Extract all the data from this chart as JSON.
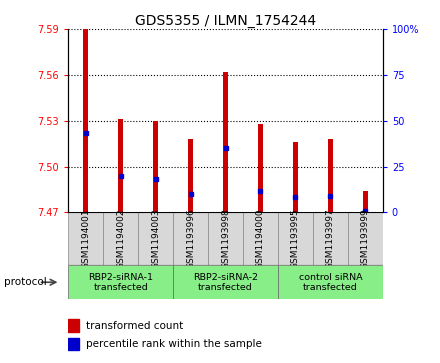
{
  "title": "GDS5355 / ILMN_1754244",
  "samples": [
    "GSM1194001",
    "GSM1194002",
    "GSM1194003",
    "GSM1193996",
    "GSM1193998",
    "GSM1194000",
    "GSM1193995",
    "GSM1193997",
    "GSM1193999"
  ],
  "bar_tops": [
    7.59,
    7.531,
    7.53,
    7.518,
    7.562,
    7.528,
    7.516,
    7.518,
    7.484
  ],
  "bar_bottoms": [
    7.47,
    7.47,
    7.47,
    7.47,
    7.47,
    7.47,
    7.47,
    7.47,
    7.47
  ],
  "percentile_values": [
    7.522,
    7.494,
    7.492,
    7.482,
    7.512,
    7.484,
    7.48,
    7.481,
    7.471
  ],
  "ylim": [
    7.47,
    7.59
  ],
  "yticks": [
    7.47,
    7.5,
    7.53,
    7.56,
    7.59
  ],
  "right_yticks": [
    0,
    25,
    50,
    75,
    100
  ],
  "right_ylim": [
    0,
    100
  ],
  "bar_color": "#cc0000",
  "percentile_color": "#0000cc",
  "group_labels": [
    "RBP2-siRNA-1\ntransfected",
    "RBP2-siRNA-2\ntransfected",
    "control siRNA\ntransfected"
  ],
  "group_ranges": [
    [
      0,
      3
    ],
    [
      3,
      6
    ],
    [
      6,
      9
    ]
  ],
  "group_color": "#88ee88",
  "legend_labels": [
    "transformed count",
    "percentile rank within the sample"
  ],
  "legend_colors": [
    "#cc0000",
    "#0000cc"
  ],
  "protocol_label": "protocol",
  "title_fontsize": 10,
  "tick_fontsize": 7,
  "bar_width": 0.15
}
